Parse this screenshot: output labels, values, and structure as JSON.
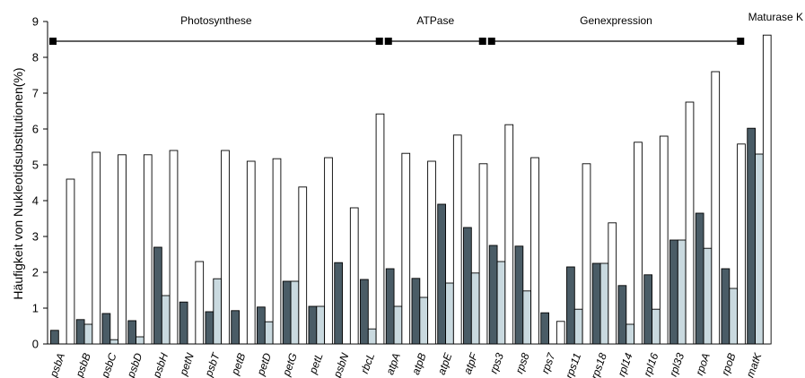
{
  "chart_data": {
    "type": "bar",
    "ylabel": "Häufigkeit von Nukleotidsubstitutionen(%)",
    "xlabel": "",
    "ylim": [
      0,
      9
    ],
    "yticks": [
      0,
      1,
      2,
      3,
      4,
      5,
      6,
      7,
      8,
      9
    ],
    "grid": false,
    "legend": "none",
    "categories": [
      "psbA",
      "psbB",
      "psbC",
      "psbD",
      "psbH",
      "petN",
      "psbT",
      "petB",
      "petD",
      "petG",
      "petL",
      "psbN",
      "rbcL",
      "atpA",
      "atpB",
      "atpE",
      "atpF",
      "rps3",
      "rps8",
      "rps7",
      "rps11",
      "rps18",
      "rpl14",
      "rpl16",
      "rpl33",
      "rpoA",
      "rpoB",
      "matK"
    ],
    "series": [
      {
        "color": "#4a5c66",
        "values": [
          0.38,
          0.68,
          0.85,
          0.65,
          2.7,
          1.17,
          0.9,
          0.93,
          1.03,
          1.75,
          1.05,
          2.27,
          1.8,
          2.1,
          1.83,
          3.9,
          3.25,
          2.75,
          2.73,
          0.87,
          2.15,
          2.25,
          1.63,
          1.93,
          2.9,
          3.65,
          2.1,
          6.02
        ]
      },
      {
        "color": "#c9d9df",
        "values": [
          0.0,
          0.55,
          0.12,
          0.2,
          1.35,
          0.0,
          1.82,
          0.0,
          0.62,
          1.75,
          1.05,
          0.0,
          0.42,
          1.05,
          1.3,
          1.7,
          1.98,
          2.3,
          1.48,
          0.0,
          0.97,
          2.25,
          0.55,
          0.97,
          2.9,
          2.67,
          1.55,
          5.3
        ]
      },
      {
        "color": "#ffffff",
        "values": [
          4.6,
          5.35,
          5.28,
          5.28,
          5.4,
          2.3,
          5.4,
          5.1,
          5.17,
          4.38,
          5.2,
          3.8,
          6.42,
          5.32,
          5.1,
          5.83,
          5.03,
          6.12,
          5.2,
          0.63,
          5.03,
          3.38,
          5.63,
          5.8,
          6.75,
          7.6,
          5.58,
          8.62
        ]
      }
    ],
    "groups": [
      {
        "label": "Photosynthese",
        "from": "psbA",
        "to": "rbcL"
      },
      {
        "label": "ATPase",
        "from": "atpA",
        "to": "atpF"
      },
      {
        "label": "Genexpression",
        "from": "rps3",
        "to": "rpoB"
      },
      {
        "label": "Maturase K",
        "from": "matK",
        "to": "matK"
      }
    ]
  }
}
